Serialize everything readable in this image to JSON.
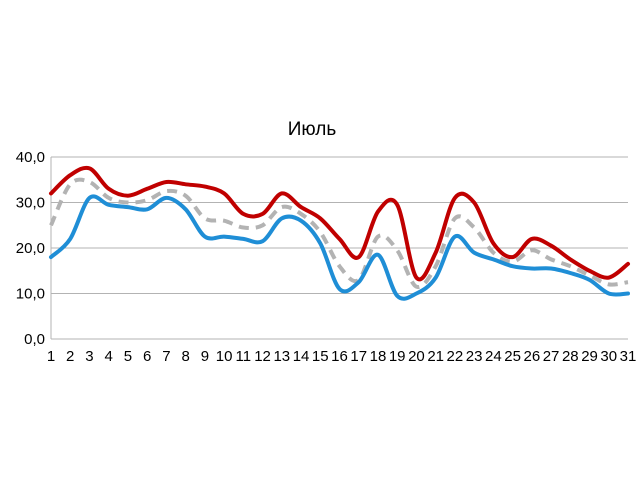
{
  "chart_data": {
    "type": "line",
    "title": "Июль",
    "xlabel": "",
    "ylabel": "",
    "ylim": [
      0,
      40
    ],
    "yticks": [
      "0,0",
      "10,0",
      "20,0",
      "30,0",
      "40,0"
    ],
    "grid": true,
    "legend": "none",
    "x": [
      "1",
      "2",
      "3",
      "4",
      "5",
      "6",
      "7",
      "8",
      "9",
      "10",
      "11",
      "12",
      "13",
      "14",
      "15",
      "16",
      "17",
      "18",
      "19",
      "20",
      "21",
      "22",
      "23",
      "24",
      "25",
      "26",
      "27",
      "28",
      "29",
      "30",
      "31"
    ],
    "series": [
      {
        "color": "#c00000",
        "style": "solid",
        "values": [
          32,
          36,
          37.5,
          33,
          31.5,
          33,
          34.5,
          34,
          33.5,
          32,
          27.5,
          27.5,
          32,
          29,
          26.5,
          22,
          18,
          28,
          29.5,
          13.5,
          19,
          31,
          30,
          21,
          18,
          22,
          20.5,
          17.5,
          15,
          13.5,
          16.5
        ]
      },
      {
        "color": "#1f8ed6",
        "style": "solid",
        "values": [
          18,
          22,
          31,
          29.5,
          29,
          28.5,
          31,
          28.5,
          22.5,
          22.5,
          22,
          21.5,
          26.5,
          26,
          21,
          11,
          12.5,
          18.5,
          9.5,
          10,
          13.5,
          22.5,
          19,
          17.5,
          16,
          15.5,
          15.5,
          14.5,
          13,
          10,
          10
        ]
      },
      {
        "color": "#b3b3b3",
        "style": "dashed",
        "values": [
          25,
          34,
          34.5,
          31,
          30,
          30.5,
          32.5,
          31.5,
          26.5,
          26,
          24.5,
          25,
          29,
          27.5,
          23.5,
          16,
          13,
          22.5,
          19.5,
          11.5,
          16,
          26.5,
          24.5,
          19,
          17,
          19.5,
          17.5,
          16,
          14,
          12,
          12.5
        ]
      }
    ]
  }
}
